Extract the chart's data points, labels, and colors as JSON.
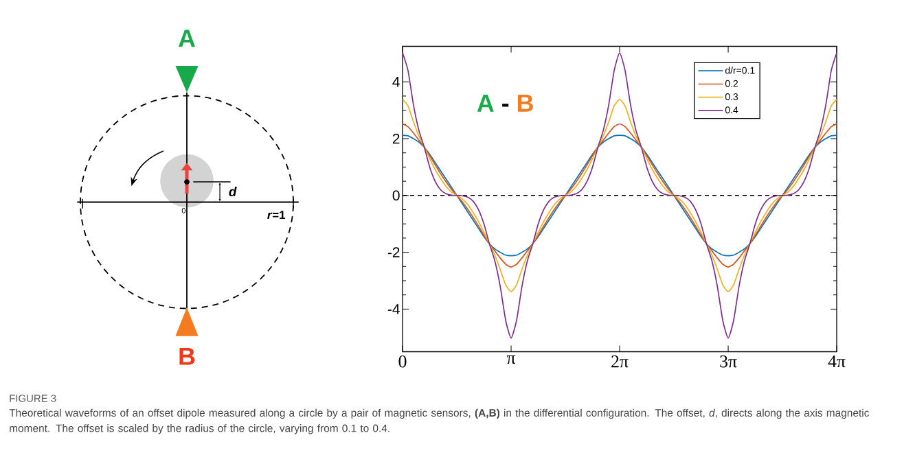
{
  "chart_data": [
    {
      "type": "other",
      "annotations": [
        "A",
        "B",
        "d",
        "*r*=1",
        "0"
      ]
    },
    {
      "type": "line",
      "marker": "none",
      "legend": "top right",
      "x": [
        0,
        0.157,
        0.314,
        0.471,
        0.628,
        0.785,
        0.942,
        1.1,
        1.257,
        1.414,
        1.571,
        1.728,
        1.885,
        2.042,
        2.199,
        2.356,
        2.513,
        2.67,
        2.827,
        2.985,
        3.142,
        3.299,
        3.456,
        3.613,
        3.77,
        3.927,
        4.084,
        4.241,
        4.398,
        4.555,
        4.712,
        4.869,
        5.027,
        5.184,
        5.341,
        5.498,
        5.655,
        5.812,
        5.969,
        6.126,
        6.283,
        6.44,
        6.597,
        6.754,
        6.912,
        7.069,
        7.226,
        7.383,
        7.54,
        7.697,
        7.854,
        8.011,
        8.168,
        8.325,
        8.482,
        8.639,
        8.796,
        8.954,
        9.111,
        9.268,
        9.425,
        9.582,
        9.739,
        9.896,
        10.053,
        10.21,
        10.367,
        10.524,
        10.681,
        10.838,
        10.996,
        11.153,
        11.31,
        11.467,
        11.624,
        11.781,
        11.938,
        12.095,
        12.252,
        12.409,
        12.566
      ],
      "series": [
        {
          "name": "d/r=0.1",
          "color": "#0072bd",
          "values": [
            2.12,
            2.1,
            2.0,
            1.88,
            1.7,
            1.45,
            1.16,
            0.87,
            0.58,
            0.29,
            0,
            -0.29,
            -0.58,
            -0.87,
            -1.16,
            -1.45,
            -1.7,
            -1.88,
            -2.0,
            -2.1,
            -2.12,
            -2.1,
            -2.0,
            -1.88,
            -1.7,
            -1.45,
            -1.16,
            -0.87,
            -0.58,
            -0.29,
            0,
            0.29,
            0.58,
            0.87,
            1.16,
            1.45,
            1.7,
            1.88,
            2.0,
            2.1,
            2.12,
            2.1,
            2.0,
            1.88,
            1.7,
            1.45,
            1.16,
            0.87,
            0.58,
            0.29,
            0,
            -0.29,
            -0.58,
            -0.87,
            -1.16,
            -1.45,
            -1.7,
            -1.88,
            -2.0,
            -2.1,
            -2.12,
            -2.1,
            -2.0,
            -1.88,
            -1.7,
            -1.45,
            -1.16,
            -0.87,
            -0.58,
            -0.29,
            0,
            0.29,
            0.58,
            0.87,
            1.16,
            1.45,
            1.7,
            1.88,
            2.0,
            2.1,
            2.12
          ]
        },
        {
          "name": "0.2",
          "color": "#d95319",
          "values": [
            2.52,
            2.42,
            2.2,
            1.95,
            1.7,
            1.4,
            1.08,
            0.77,
            0.48,
            0.22,
            0,
            -0.22,
            -0.48,
            -0.77,
            -1.08,
            -1.4,
            -1.7,
            -1.95,
            -2.2,
            -2.42,
            -2.52,
            -2.42,
            -2.2,
            -1.95,
            -1.7,
            -1.4,
            -1.08,
            -0.77,
            -0.48,
            -0.22,
            0,
            0.22,
            0.48,
            0.77,
            1.08,
            1.4,
            1.7,
            1.95,
            2.2,
            2.42,
            2.52,
            2.42,
            2.2,
            1.95,
            1.7,
            1.4,
            1.08,
            0.77,
            0.48,
            0.22,
            0,
            -0.22,
            -0.48,
            -0.77,
            -1.08,
            -1.4,
            -1.7,
            -1.95,
            -2.2,
            -2.42,
            -2.52,
            -2.42,
            -2.2,
            -1.95,
            -1.7,
            -1.4,
            -1.08,
            -0.77,
            -0.48,
            -0.22,
            0,
            0.22,
            0.48,
            0.77,
            1.08,
            1.4,
            1.7,
            1.95,
            2.2,
            2.42,
            2.52
          ]
        },
        {
          "name": "0.3",
          "color": "#edb120",
          "values": [
            3.38,
            3.15,
            2.6,
            2.1,
            1.7,
            1.3,
            0.92,
            0.6,
            0.32,
            0.12,
            0,
            -0.12,
            -0.32,
            -0.6,
            -0.92,
            -1.3,
            -1.7,
            -2.1,
            -2.6,
            -3.15,
            -3.38,
            -3.15,
            -2.6,
            -2.1,
            -1.7,
            -1.3,
            -0.92,
            -0.6,
            -0.32,
            -0.12,
            0,
            0.12,
            0.32,
            0.6,
            0.92,
            1.3,
            1.7,
            2.1,
            2.6,
            3.15,
            3.38,
            3.15,
            2.6,
            2.1,
            1.7,
            1.3,
            0.92,
            0.6,
            0.32,
            0.12,
            0,
            -0.12,
            -0.32,
            -0.6,
            -0.92,
            -1.3,
            -1.7,
            -2.1,
            -2.6,
            -3.15,
            -3.38,
            -3.15,
            -2.6,
            -2.1,
            -1.7,
            -1.3,
            -0.92,
            -0.6,
            -0.32,
            -0.12,
            0,
            0.12,
            0.32,
            0.6,
            0.92,
            1.3,
            1.7,
            2.1,
            2.6,
            3.15,
            3.38
          ]
        },
        {
          "name": "0.4",
          "color": "#7e2f8e",
          "values": [
            5.02,
            4.4,
            3.2,
            2.3,
            1.7,
            1.0,
            0.5,
            0.2,
            0.06,
            0.01,
            0,
            -0.01,
            -0.06,
            -0.2,
            -0.5,
            -1.0,
            -1.7,
            -2.3,
            -3.2,
            -4.4,
            -5.02,
            -4.4,
            -3.2,
            -2.3,
            -1.7,
            -1.0,
            -0.5,
            -0.2,
            -0.06,
            -0.01,
            0,
            0.01,
            0.06,
            0.2,
            0.5,
            1.0,
            1.7,
            2.3,
            3.2,
            4.4,
            5.02,
            4.4,
            3.2,
            2.3,
            1.7,
            1.0,
            0.5,
            0.2,
            0.06,
            0.01,
            0,
            -0.01,
            -0.06,
            -0.2,
            -0.5,
            -1.0,
            -1.7,
            -2.3,
            -3.2,
            -4.4,
            -5.02,
            -4.4,
            -3.2,
            -2.3,
            -1.7,
            -1.0,
            -0.5,
            -0.2,
            -0.06,
            -0.01,
            0,
            0.01,
            0.06,
            0.2,
            0.5,
            1.0,
            1.7,
            2.3,
            3.2,
            4.4,
            5.02
          ]
        }
      ],
      "xlim": [
        0,
        12.566
      ],
      "ylim": [
        -5.5,
        5.25
      ],
      "xticks": [
        0,
        {
          "value": 3.142,
          "label": "π"
        },
        {
          "value": 6.283,
          "label": "2π"
        },
        {
          "value": 9.425,
          "label": "3π"
        },
        {
          "value": 12.566,
          "label": "4π"
        }
      ],
      "yticks": [
        -4,
        -2,
        0,
        2,
        4
      ],
      "ref_lines": [
        {
          "axis": "y",
          "value": 0,
          "color": "#000000",
          "line_style": "dashed"
        }
      ],
      "annotations": [
        "A",
        "-",
        "B",
        "FIGURE 3",
        "Theoretical waveforms of an offset dipole measured along a circle by a pair of magnetic sensors, **(A,B)** in the differential configuration. The offset, *d*, directs along the axis magnetic moment. The offset is scaled by the radius of the circle, varying from 0.1 to 0.4."
      ]
    }
  ]
}
